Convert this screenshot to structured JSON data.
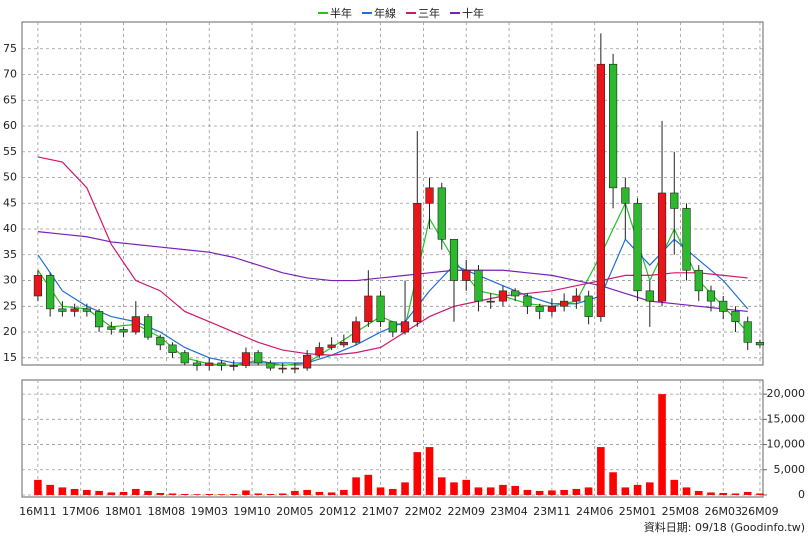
{
  "chart_data": {
    "type": "candlestick",
    "legend": [
      "半年",
      "年線",
      "三年",
      "十年"
    ],
    "footer": "資料日期: 09/18 (Goodinfo.tw)",
    "grid": true,
    "xlim": [
      -2.6,
      118.5
    ],
    "xticks": [
      {
        "value": 0,
        "label": "16M11"
      },
      {
        "value": 7,
        "label": "17M06"
      },
      {
        "value": 14,
        "label": "18M01"
      },
      {
        "value": 21,
        "label": "18M08"
      },
      {
        "value": 28,
        "label": "19M03"
      },
      {
        "value": 35,
        "label": "19M10"
      },
      {
        "value": 42,
        "label": "20M05"
      },
      {
        "value": 49,
        "label": "20M12"
      },
      {
        "value": 56,
        "label": "21M07"
      },
      {
        "value": 63,
        "label": "22M02"
      },
      {
        "value": 70,
        "label": "22M09"
      },
      {
        "value": 77,
        "label": "23M04"
      },
      {
        "value": 84,
        "label": "23M11"
      },
      {
        "value": 91,
        "label": "24M06"
      },
      {
        "value": 98,
        "label": "25M01"
      },
      {
        "value": 105,
        "label": "25M08"
      },
      {
        "value": 112,
        "label": "26M03"
      },
      {
        "value": 118,
        "label": "26M09"
      }
    ],
    "ylim": [
      13.6,
      80.2
    ],
    "yticks": [
      15,
      20,
      25,
      30,
      35,
      40,
      45,
      50,
      55,
      60,
      65,
      70,
      75
    ],
    "up_color": "#e8161b",
    "down_color": "#2db92d",
    "x": [
      0,
      2,
      4,
      6,
      8,
      10,
      12,
      14,
      16,
      18,
      20,
      22,
      24,
      26,
      28,
      30,
      32,
      34,
      36,
      38,
      40,
      42,
      44,
      46,
      48,
      50,
      52,
      54,
      56,
      58,
      60,
      62,
      64,
      66,
      68,
      70,
      72,
      74,
      76,
      78,
      80,
      82,
      84,
      86,
      88,
      90,
      92,
      94,
      96,
      98,
      100,
      102,
      104,
      106,
      108,
      110,
      112,
      114,
      116,
      118
    ],
    "open": [
      27,
      31,
      24.5,
      24,
      24.5,
      24,
      21,
      20.5,
      20,
      23,
      19,
      17.5,
      16,
      14,
      13.5,
      14,
      13.5,
      13.5,
      16,
      14,
      13,
      13,
      13,
      15.5,
      17,
      17.5,
      18,
      22,
      27,
      22,
      20,
      22,
      45,
      48,
      38,
      30,
      32,
      26,
      26,
      28,
      27,
      25,
      24,
      25,
      26,
      27,
      23,
      72,
      48,
      45,
      28,
      26,
      47,
      44,
      32,
      28,
      26,
      24,
      22,
      18
    ],
    "high": [
      32,
      31.5,
      26,
      25.5,
      25.5,
      24.5,
      22,
      21,
      26,
      23.5,
      19.5,
      18,
      16.5,
      14.5,
      15,
      14.5,
      14.5,
      17,
      16.5,
      14.5,
      14,
      14,
      16.5,
      18,
      19,
      19.5,
      23,
      32,
      28,
      22,
      30,
      59,
      50,
      49,
      38,
      34,
      33,
      27.5,
      29,
      28.5,
      27.5,
      25.5,
      26.5,
      27.5,
      28.5,
      28,
      78,
      74,
      50,
      46,
      30,
      61,
      55,
      45,
      33,
      29,
      27,
      25,
      23,
      18.5
    ],
    "low": [
      26,
      23,
      23,
      23,
      23,
      20,
      19.5,
      19,
      19.5,
      18.5,
      16.5,
      15,
      13.5,
      12.5,
      12.5,
      12.5,
      12.5,
      13,
      13.5,
      12.5,
      12,
      12,
      12.5,
      15,
      16.5,
      17,
      17.5,
      21,
      21,
      19,
      19.5,
      21,
      40,
      36,
      22,
      28,
      24,
      24.5,
      25,
      26,
      23.5,
      22.5,
      23,
      24,
      24.5,
      21.5,
      22,
      44,
      38,
      26,
      21,
      25,
      35,
      30,
      26,
      24,
      22.5,
      20,
      16.5,
      17
    ],
    "close": [
      31,
      24.5,
      24,
      24.5,
      24,
      21,
      20.5,
      20,
      23,
      19,
      17.5,
      16,
      14,
      13.5,
      14,
      13.5,
      13.5,
      16,
      14,
      13,
      13,
      13,
      15.5,
      17,
      17.5,
      18,
      22,
      27,
      22,
      20,
      22,
      45,
      48,
      38,
      30,
      32,
      26,
      26,
      28,
      27,
      25,
      24,
      25,
      26,
      27,
      23,
      72,
      48,
      45,
      28,
      26,
      47,
      44,
      32,
      28,
      26,
      24,
      22,
      18,
      17.5
    ],
    "ma_x": [
      0,
      4,
      8,
      12,
      16,
      20,
      24,
      28,
      32,
      36,
      40,
      44,
      48,
      52,
      56,
      60,
      64,
      68,
      72,
      76,
      80,
      84,
      88,
      92,
      96,
      100,
      104,
      108,
      112,
      116
    ],
    "lines": [
      {
        "name": "半年",
        "color": "#22c322",
        "values": [
          32,
          25,
          24.5,
          21,
          21.5,
          19,
          15,
          13.8,
          13.5,
          14.5,
          13.5,
          14,
          17,
          20,
          23,
          21,
          42,
          34,
          28,
          27,
          25.5,
          25,
          26,
          35,
          45,
          30,
          40,
          30,
          25,
          20
        ]
      },
      {
        "name": "年線",
        "color": "#1f6fd6",
        "values": [
          35,
          28,
          25,
          23,
          22,
          20,
          17,
          15,
          14,
          14,
          14,
          14,
          15.5,
          17.5,
          20,
          22,
          28,
          33,
          31,
          29,
          27,
          25.5,
          25.5,
          27,
          38,
          33,
          38,
          34,
          30,
          24.5
        ]
      },
      {
        "name": "三年",
        "color": "#d0166e",
        "values": [
          54,
          53,
          48,
          37,
          30,
          28,
          24,
          22,
          20,
          18,
          16.5,
          15.8,
          15.5,
          16,
          17,
          20,
          23,
          25,
          26,
          27,
          27.5,
          28,
          29,
          30,
          31,
          31,
          31.5,
          31.5,
          31,
          30.5
        ]
      },
      {
        "name": "十年",
        "color": "#7a1fb8",
        "values": [
          39.5,
          39,
          38.5,
          37.5,
          37,
          36.5,
          36,
          35.5,
          34.5,
          33,
          31.5,
          30.5,
          30,
          30,
          30.5,
          31,
          31.5,
          32,
          32,
          32,
          31.5,
          31,
          30,
          29,
          27.5,
          26,
          25.5,
          25,
          24.5,
          24
        ]
      }
    ],
    "volume": {
      "color": "#ff0000",
      "ylim": [
        -400,
        22800
      ],
      "yticks": [
        0,
        {
          "value": 5000,
          "label": "5,000"
        },
        {
          "value": 10000,
          "label": "10,000"
        },
        {
          "value": 15000,
          "label": "15,000"
        },
        {
          "value": 20000,
          "label": "20,000"
        }
      ],
      "values": [
        3000,
        2000,
        1500,
        1200,
        1000,
        800,
        500,
        600,
        1200,
        800,
        400,
        300,
        200,
        150,
        200,
        150,
        200,
        900,
        300,
        200,
        300,
        800,
        1000,
        600,
        500,
        1000,
        3500,
        4000,
        1500,
        1200,
        2500,
        8500,
        9500,
        3500,
        2500,
        3000,
        1500,
        1500,
        2000,
        1800,
        1000,
        800,
        900,
        1000,
        1200,
        1500,
        9500,
        4500,
        1500,
        2000,
        2500,
        20000,
        3000,
        1500,
        800,
        500,
        400,
        300,
        600,
        300
      ]
    }
  }
}
